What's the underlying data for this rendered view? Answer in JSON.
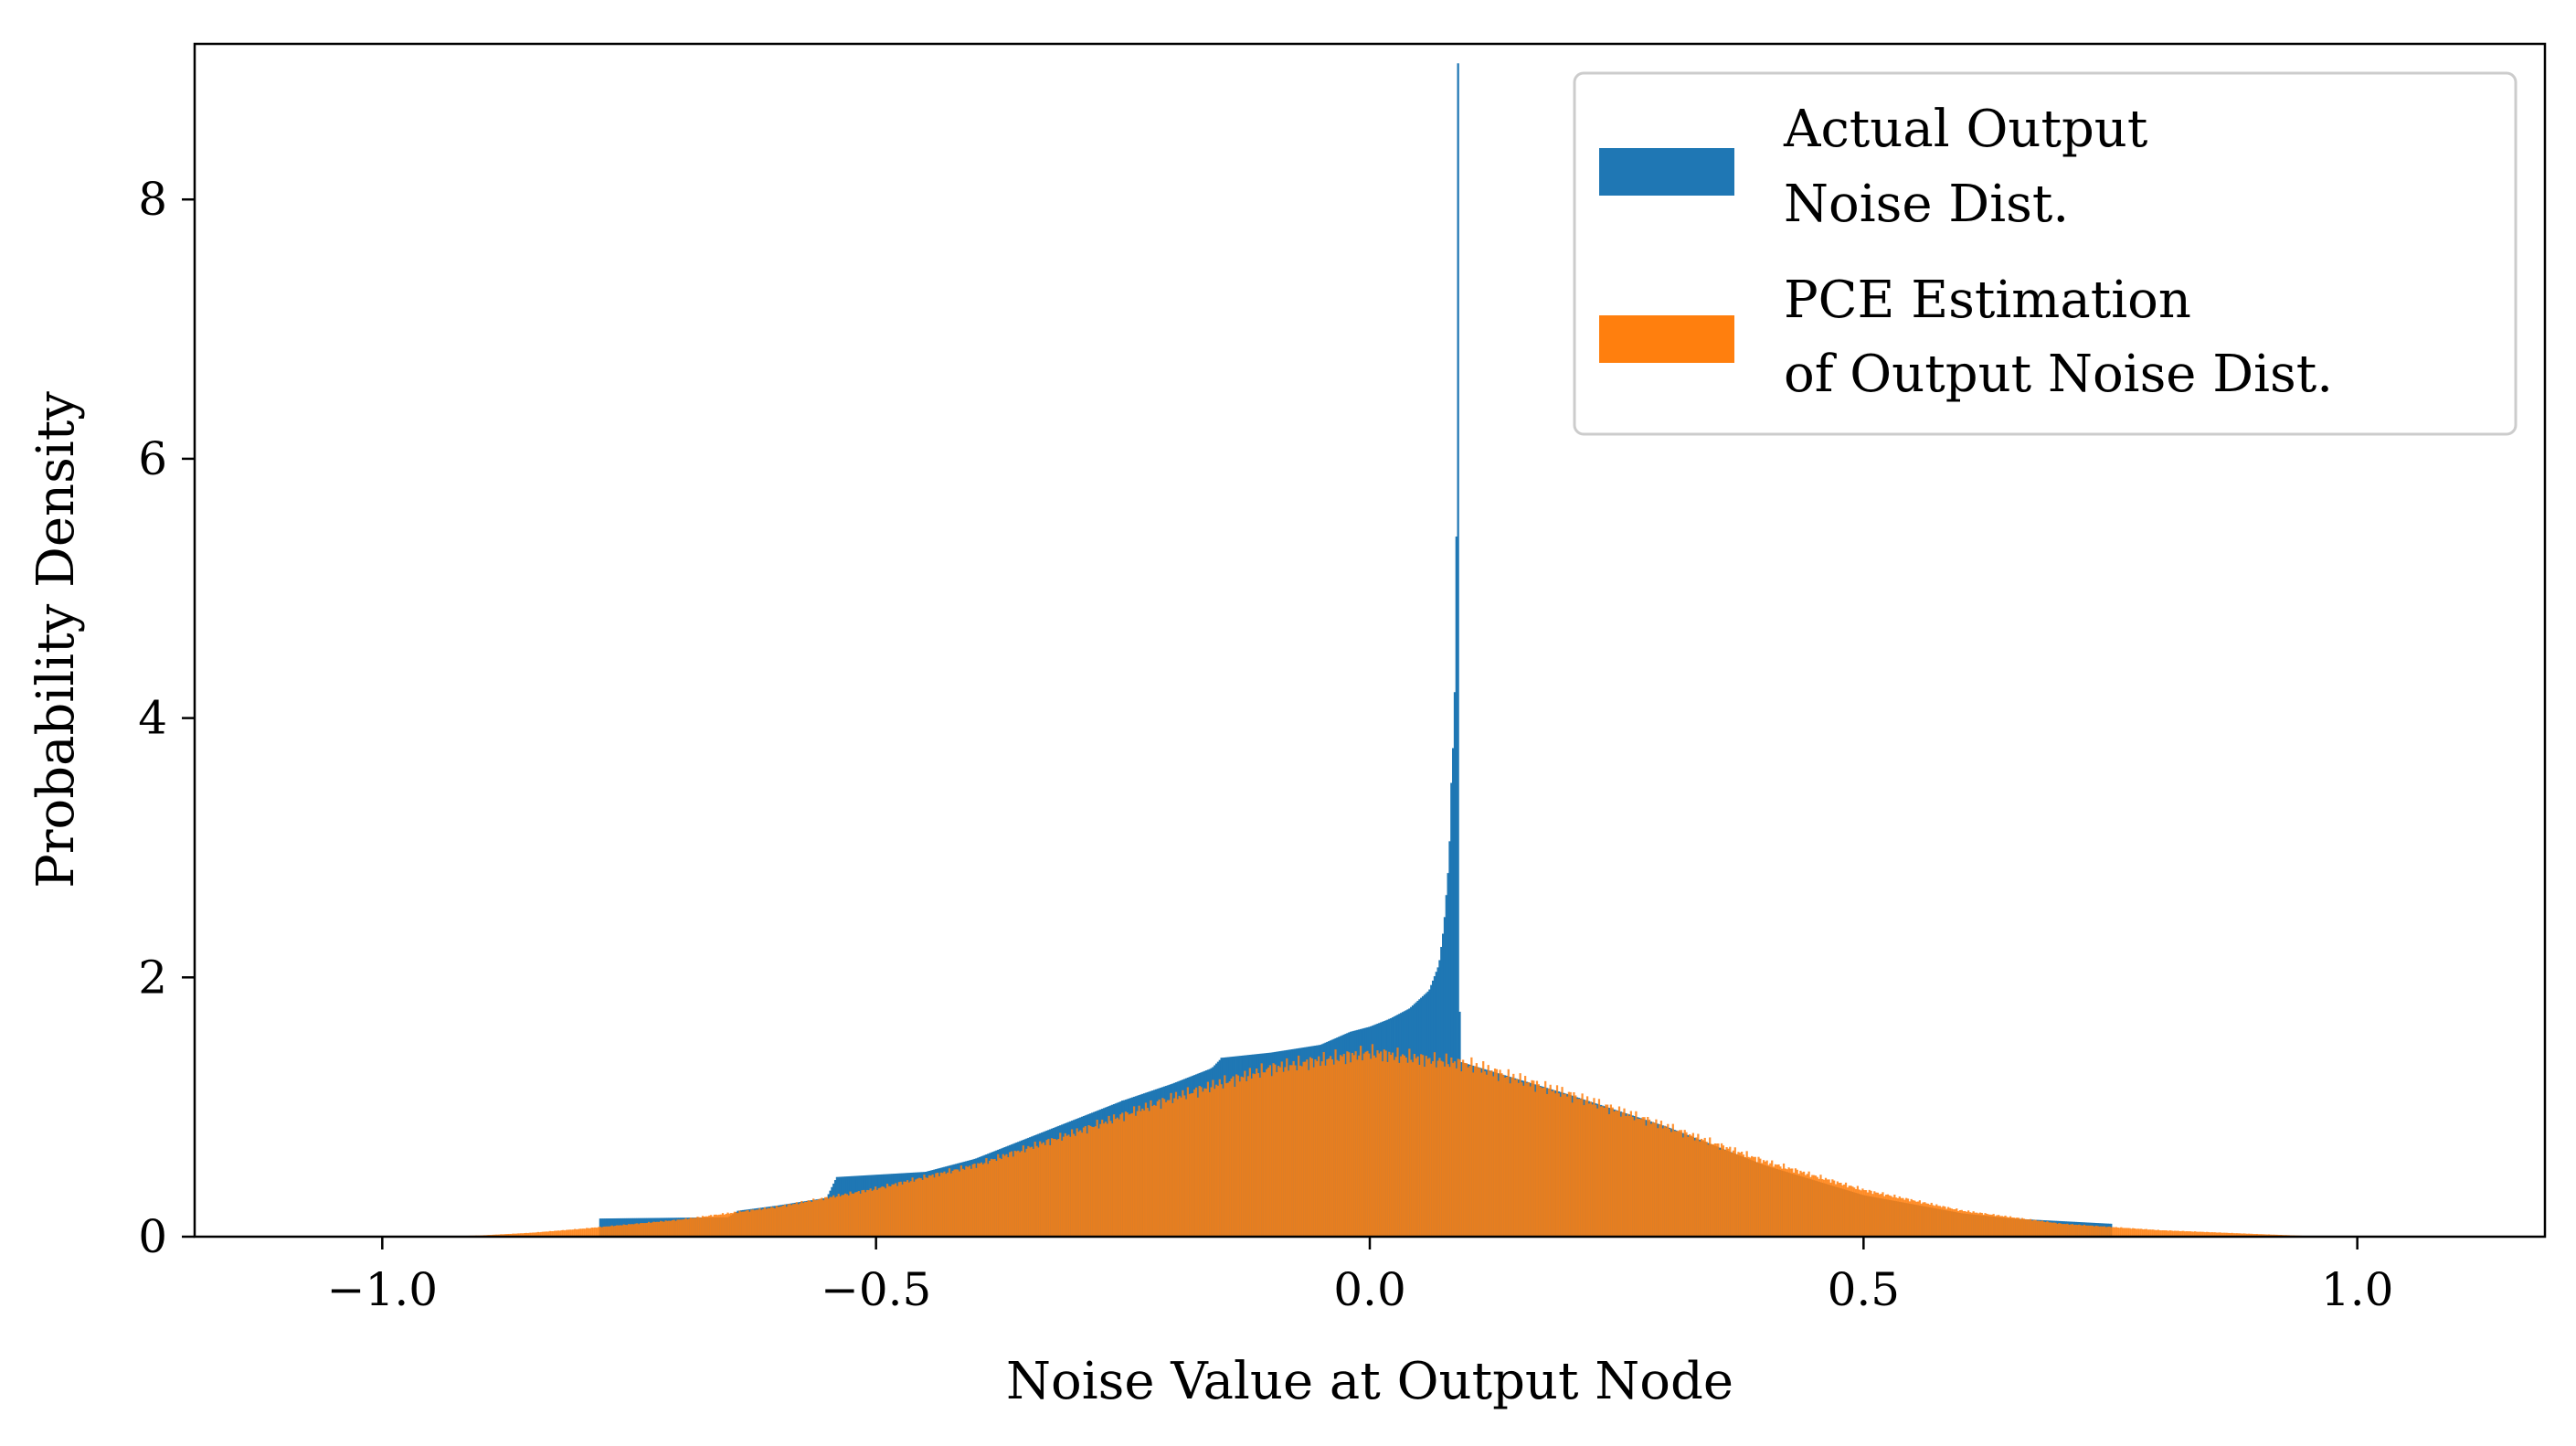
{
  "chart_data": {
    "type": "histogram",
    "title": "",
    "xlabel": "Noise Value at Output Node",
    "ylabel": "Probability Density",
    "xlim": [
      -1.19,
      1.19
    ],
    "ylim": [
      0,
      9.2
    ],
    "xticks": [
      {
        "value": -1.0,
        "label": "−1.0"
      },
      {
        "value": -0.5,
        "label": "−0.5"
      },
      {
        "value": 0.0,
        "label": "0.0"
      },
      {
        "value": 0.5,
        "label": "0.5"
      },
      {
        "value": 1.0,
        "label": "1.0"
      }
    ],
    "yticks": [
      {
        "value": 0,
        "label": "0"
      },
      {
        "value": 2,
        "label": "2"
      },
      {
        "value": 4,
        "label": "4"
      },
      {
        "value": 6,
        "label": "6"
      },
      {
        "value": 8,
        "label": "8"
      }
    ],
    "grid": false,
    "legend_position": "top-right",
    "series": [
      {
        "name": "Actual Output Noise Dist.",
        "legend_lines": [
          "Actual Output",
          "Noise Dist."
        ],
        "color": "#1f77b4",
        "points": [
          [
            -0.78,
            0.0
          ],
          [
            -0.78,
            0.14
          ],
          [
            -0.65,
            0.15
          ],
          [
            -0.64,
            0.2
          ],
          [
            -0.6,
            0.24
          ],
          [
            -0.55,
            0.3
          ],
          [
            -0.54,
            0.46
          ],
          [
            -0.45,
            0.5
          ],
          [
            -0.4,
            0.6
          ],
          [
            -0.35,
            0.75
          ],
          [
            -0.3,
            0.9
          ],
          [
            -0.25,
            1.05
          ],
          [
            -0.2,
            1.18
          ],
          [
            -0.16,
            1.3
          ],
          [
            -0.15,
            1.38
          ],
          [
            -0.1,
            1.42
          ],
          [
            -0.05,
            1.48
          ],
          [
            -0.02,
            1.58
          ],
          [
            0.0,
            1.62
          ],
          [
            0.02,
            1.68
          ],
          [
            0.04,
            1.76
          ],
          [
            0.06,
            1.9
          ],
          [
            0.07,
            2.1
          ],
          [
            0.075,
            2.4
          ],
          [
            0.08,
            2.9
          ],
          [
            0.083,
            3.5
          ],
          [
            0.086,
            4.2
          ],
          [
            0.088,
            5.4
          ],
          [
            0.09,
            9.05
          ],
          [
            0.091,
            1.35
          ],
          [
            0.2,
            1.1
          ],
          [
            0.3,
            0.85
          ],
          [
            0.4,
            0.55
          ],
          [
            0.5,
            0.32
          ],
          [
            0.6,
            0.18
          ],
          [
            0.65,
            0.14
          ],
          [
            0.7,
            0.12
          ],
          [
            0.75,
            0.1
          ],
          [
            0.75,
            0.0
          ]
        ]
      },
      {
        "name": "PCE Estimation of Output Noise Dist.",
        "legend_lines": [
          "PCE Estimation",
          "of Output Noise Dist."
        ],
        "color": "#ff7f0e",
        "points": [
          [
            -0.95,
            0.0
          ],
          [
            -0.9,
            0.01
          ],
          [
            -0.85,
            0.03
          ],
          [
            -0.8,
            0.06
          ],
          [
            -0.7,
            0.13
          ],
          [
            -0.6,
            0.23
          ],
          [
            -0.5,
            0.37
          ],
          [
            -0.4,
            0.55
          ],
          [
            -0.3,
            0.8
          ],
          [
            -0.2,
            1.07
          ],
          [
            -0.1,
            1.3
          ],
          [
            0.0,
            1.42
          ],
          [
            0.1,
            1.33
          ],
          [
            0.2,
            1.1
          ],
          [
            0.3,
            0.85
          ],
          [
            0.4,
            0.58
          ],
          [
            0.5,
            0.36
          ],
          [
            0.6,
            0.2
          ],
          [
            0.7,
            0.1
          ],
          [
            0.8,
            0.05
          ],
          [
            0.9,
            0.02
          ],
          [
            0.97,
            0.0
          ]
        ]
      }
    ]
  }
}
